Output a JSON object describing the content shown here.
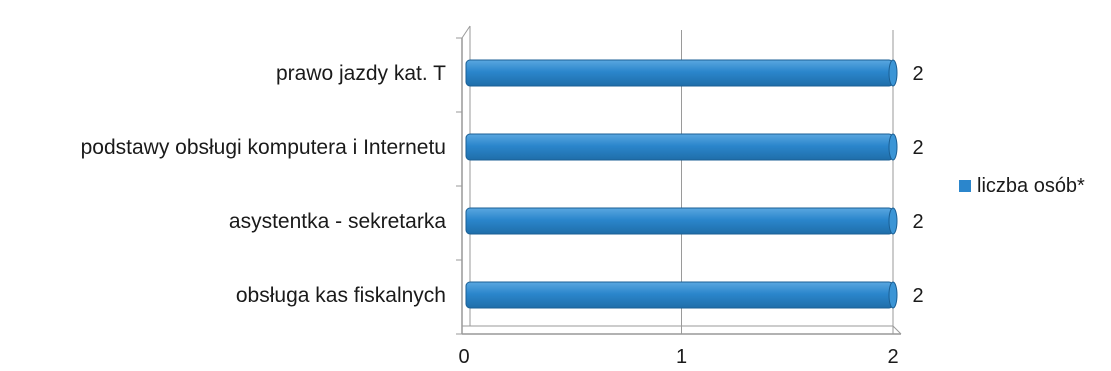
{
  "chart_data": {
    "type": "bar",
    "orientation": "horizontal",
    "categories": [
      "prawo jazdy kat. T",
      "podstawy obsługi komputera i Internetu",
      "asystentka - sekretarka",
      "obsługa kas fiskalnych"
    ],
    "series": [
      {
        "name": "liczba osób*",
        "values": [
          2,
          2,
          2,
          2
        ]
      }
    ],
    "xlim": [
      0,
      2
    ],
    "xticks": [
      "0",
      "1",
      "2"
    ],
    "grid": "vertical",
    "legend": "right",
    "title": "",
    "xlabel": "",
    "ylabel": "",
    "colors": {
      "bar": "#2b86cc",
      "bar_dark": "#1f6ea9",
      "bar_light": "#5aa7e0",
      "axis": "#999999",
      "grid": "#9a9a9a"
    }
  }
}
